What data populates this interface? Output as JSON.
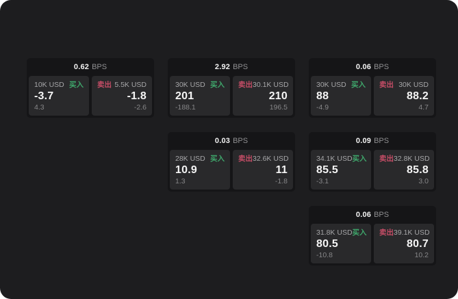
{
  "labels": {
    "bps_suffix": "BPS",
    "buy": "买入",
    "sell": "卖出"
  },
  "colors": {
    "background": "#1d1d1f",
    "card": "#151517",
    "panel": "#29292b",
    "buy_accent": "#3fa66b",
    "sell_accent": "#c54d66"
  },
  "cards": [
    {
      "row": 1,
      "col": 1,
      "bps": "0.62",
      "buy": {
        "size": "10K USD",
        "value": "-3.7",
        "sub": "4.3"
      },
      "sell": {
        "size": "5.5K USD",
        "value": "-1.8",
        "sub": "-2.6"
      }
    },
    {
      "row": 1,
      "col": 2,
      "bps": "2.92",
      "buy": {
        "size": "30K USD",
        "value": "201",
        "sub": "-188.1"
      },
      "sell": {
        "size": "30.1K USD",
        "value": "210",
        "sub": "196.5"
      }
    },
    {
      "row": 1,
      "col": 3,
      "bps": "0.06",
      "buy": {
        "size": "30K USD",
        "value": "88",
        "sub": "-4.9"
      },
      "sell": {
        "size": "30K USD",
        "value": "88.2",
        "sub": "4.7"
      }
    },
    {
      "row": 2,
      "col": 2,
      "bps": "0.03",
      "buy": {
        "size": "28K USD",
        "value": "10.9",
        "sub": "1.3"
      },
      "sell": {
        "size": "32.6K USD",
        "value": "11",
        "sub": "-1.8"
      }
    },
    {
      "row": 2,
      "col": 3,
      "bps": "0.09",
      "buy": {
        "size": "34.1K USD",
        "value": "85.5",
        "sub": "-3.1"
      },
      "sell": {
        "size": "32.8K USD",
        "value": "85.8",
        "sub": "3.0"
      }
    },
    {
      "row": 3,
      "col": 3,
      "bps": "0.06",
      "buy": {
        "size": "31.8K USD",
        "value": "80.5",
        "sub": "-10.8"
      },
      "sell": {
        "size": "39.1K USD",
        "value": "80.7",
        "sub": "10.2"
      }
    }
  ]
}
